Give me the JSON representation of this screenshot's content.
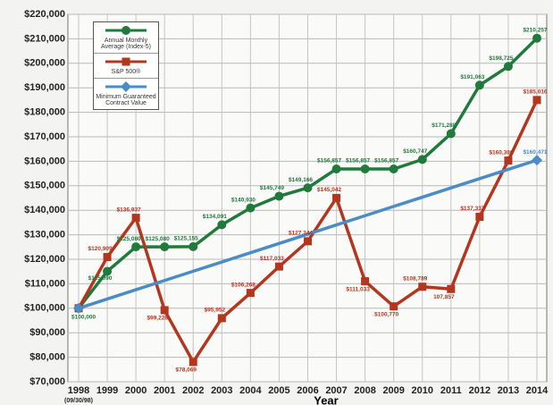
{
  "chart_data": {
    "type": "line",
    "x_label": "Year",
    "x_sublabel": "(09/30/98)",
    "categories": [
      "1998",
      "1999",
      "2000",
      "2001",
      "2002",
      "2003",
      "2004",
      "2005",
      "2006",
      "2007",
      "2008",
      "2009",
      "2010",
      "2011",
      "2012",
      "2013",
      "2014"
    ],
    "series": [
      {
        "name": "Annual Monthly Average (Index-5)",
        "color": "#1f7a3c",
        "marker": "circle",
        "values": [
          100000,
          115090,
          125080,
          125080,
          125155,
          134091,
          140930,
          145749,
          149166,
          156857,
          156857,
          156857,
          160747,
          171288,
          191063,
          198725,
          210257
        ],
        "value_labels": [
          "$100,000",
          "$115,090",
          "$125,080",
          "$125,080",
          "$125,155",
          "$134,091",
          "$140,930",
          "$145,749",
          "$149,166",
          "$156,857",
          "$156,857",
          "$156,857",
          "$160,747",
          "$171,288",
          "$191,063",
          "$198,725",
          "$210,257"
        ]
      },
      {
        "name": "S&P 500®",
        "color": "#b3361f",
        "marker": "square",
        "values": [
          100000,
          120909,
          136937,
          99228,
          78069,
          95952,
          106268,
          117033,
          127344,
          145042,
          111033,
          100770,
          108789,
          107857,
          137337,
          160300,
          185016
        ],
        "value_labels": [
          null,
          "$120,909",
          "$136,937",
          "$99,228",
          "$78,069",
          "$95,952",
          "$106,268",
          "$117,033",
          "$127,344",
          "$145,042",
          "$111,033",
          "$100,770",
          "$108,789",
          "107,857",
          "$137,337",
          "$160,300",
          "$185,016"
        ]
      },
      {
        "name": "Minimum Guaranteed Contract Value",
        "color": "#4a8cc6",
        "marker": "diamond",
        "values": [
          100000,
          103779,
          107559,
          111338,
          115118,
          118897,
          122677,
          126456,
          130236,
          134015,
          137794,
          141574,
          145353,
          149133,
          152912,
          156692,
          160471
        ],
        "value_labels": [
          null,
          null,
          null,
          null,
          null,
          null,
          null,
          null,
          null,
          null,
          null,
          null,
          null,
          null,
          null,
          null,
          "$160,471"
        ]
      }
    ],
    "ylim": [
      70000,
      220000
    ],
    "yticks": [
      {
        "value": 70000,
        "label": "$70,000"
      },
      {
        "value": 80000,
        "label": "$80,000"
      },
      {
        "value": 90000,
        "label": "$90,000"
      },
      {
        "value": 100000,
        "label": "$100,000"
      },
      {
        "value": 110000,
        "label": "$110,000"
      },
      {
        "value": 120000,
        "label": "$120,000"
      },
      {
        "value": 130000,
        "label": "$130,000"
      },
      {
        "value": 140000,
        "label": "$140,000"
      },
      {
        "value": 150000,
        "label": "$150,000"
      },
      {
        "value": 160000,
        "label": "$160,000"
      },
      {
        "value": 170000,
        "label": "$170,000"
      },
      {
        "value": 180000,
        "label": "$180,000"
      },
      {
        "value": 190000,
        "label": "$190,000"
      },
      {
        "value": 200000,
        "label": "$200,000"
      },
      {
        "value": 210000,
        "label": "$210,000"
      },
      {
        "value": 220000,
        "label": "$220,000"
      }
    ],
    "grid": true,
    "legend": "upper left"
  }
}
